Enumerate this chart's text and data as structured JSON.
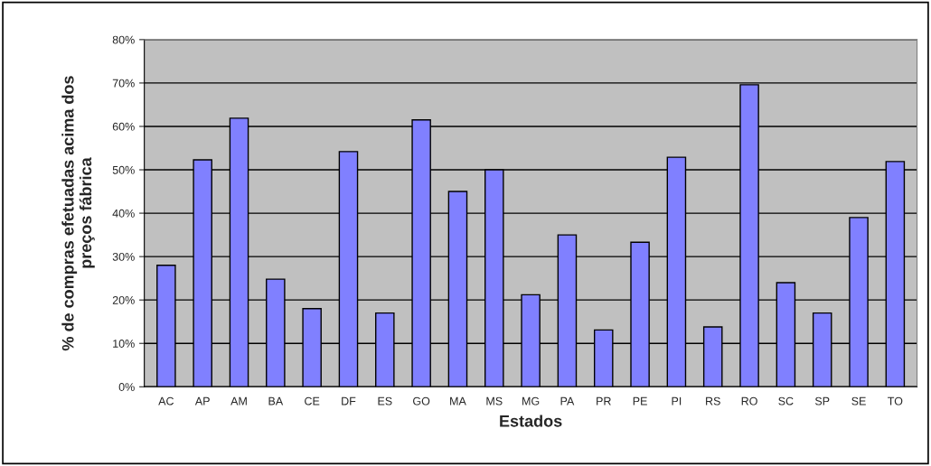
{
  "chart_data": {
    "type": "bar",
    "categories": [
      "AC",
      "AP",
      "AM",
      "BA",
      "CE",
      "DF",
      "ES",
      "GO",
      "MA",
      "MS",
      "MG",
      "PA",
      "PR",
      "PE",
      "PI",
      "RS",
      "RO",
      "SC",
      "SP",
      "SE",
      "TO"
    ],
    "values": [
      28,
      52.3,
      61.9,
      24.8,
      18,
      54.2,
      17,
      61.5,
      45,
      50,
      21.2,
      35,
      13.1,
      33.3,
      52.9,
      13.8,
      69.6,
      24,
      17,
      39,
      51.9
    ],
    "color": "#8080ff",
    "xlabel": "Estados",
    "ylabel": "% de compras efetuadas acima dos\npreços fábrica",
    "ylim": [
      0,
      80
    ],
    "yticks": [
      {
        "value": 0,
        "label": "0%"
      },
      {
        "value": 10,
        "label": "10%"
      },
      {
        "value": 20,
        "label": "20%"
      },
      {
        "value": 30,
        "label": "30%"
      },
      {
        "value": 40,
        "label": "40%"
      },
      {
        "value": 50,
        "label": "50%"
      },
      {
        "value": 60,
        "label": "60%"
      },
      {
        "value": 70,
        "label": "70%"
      },
      {
        "value": 80,
        "label": "80%"
      }
    ],
    "grid": "y"
  }
}
